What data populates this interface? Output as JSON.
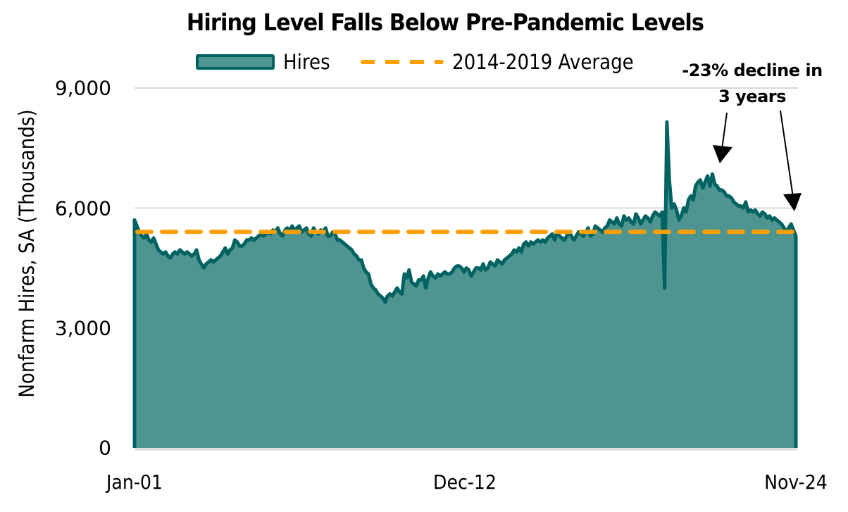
{
  "title": "Hiring Level Falls Below Pre-Pandemic Levels",
  "legend": {
    "hires": "Hires",
    "average": "2014-2019 Average"
  },
  "annotation": {
    "line1": "-23% decline in",
    "line2": "3 years"
  },
  "colors": {
    "hires_fill": "#4e9490",
    "hires_line": "#006361",
    "average_line": "#ffa000",
    "gridline": "#d9d9d9"
  },
  "axes": {
    "ylabel": "Nonfarm Hires, SA (Thousands)",
    "yticks": [
      "9,000",
      "6,000",
      "3,000",
      "0"
    ],
    "xticks": [
      "Jan-01",
      "Dec-12",
      "Nov-24"
    ]
  },
  "chart_data": {
    "type": "area",
    "title": "Hiring Level Falls Below Pre-Pandemic Levels",
    "xlabel": "",
    "ylabel": "Nonfarm Hires, SA (Thousands)",
    "ylim": [
      0,
      9000
    ],
    "yticks": [
      0,
      3000,
      6000,
      9000
    ],
    "xticks": [
      "Jan-01",
      "Dec-12",
      "Nov-24"
    ],
    "x_range": [
      "Jan-01",
      "Nov-24"
    ],
    "grid": true,
    "legend_position": "top",
    "annotations": [
      "-23% decline in 3 years"
    ],
    "series": [
      {
        "name": "Hires",
        "type": "area",
        "frequency": "monthly",
        "start": "Jan-01",
        "values": [
          5700,
          5550,
          5400,
          5300,
          5250,
          5350,
          5200,
          5150,
          5250,
          5100,
          4950,
          4900,
          4850,
          4900,
          4800,
          4750,
          4850,
          4900,
          4850,
          4950,
          4900,
          4850,
          4900,
          4850,
          4800,
          4850,
          4950,
          4700,
          4600,
          4500,
          4600,
          4650,
          4700,
          4650,
          4700,
          4750,
          4800,
          4900,
          5000,
          4850,
          4950,
          5000,
          5200,
          5150,
          5050,
          5050,
          5100,
          5200,
          5200,
          5250,
          5200,
          5250,
          5300,
          5350,
          5300,
          5350,
          5400,
          5350,
          5450,
          5400,
          5500,
          5350,
          5300,
          5450,
          5500,
          5400,
          5550,
          5450,
          5500,
          5550,
          5400,
          5450,
          5500,
          5350,
          5300,
          5500,
          5400,
          5350,
          5450,
          5400,
          5500,
          5300,
          5300,
          5400,
          5350,
          5200,
          5200,
          5150,
          5100,
          5050,
          5000,
          4950,
          4850,
          4800,
          4700,
          4700,
          4500,
          4400,
          4350,
          4100,
          4000,
          3950,
          3850,
          3800,
          3750,
          3650,
          3800,
          3850,
          3800,
          3900,
          4000,
          3900,
          3850,
          4350,
          4250,
          4450,
          4150,
          4100,
          4050,
          4200,
          4200,
          4300,
          4000,
          4250,
          4400,
          4300,
          4250,
          4350,
          4300,
          4350,
          4400,
          4350,
          4350,
          4400,
          4500,
          4550,
          4550,
          4500,
          4400,
          4500,
          4450,
          4300,
          4400,
          4500,
          4500,
          4450,
          4600,
          4450,
          4500,
          4650,
          4600,
          4550,
          4700,
          4650,
          4600,
          4700,
          4750,
          4800,
          4850,
          4950,
          4900,
          5000,
          4900,
          5100,
          5150,
          5050,
          5150,
          5100,
          5150,
          5200,
          5150,
          5200,
          5150,
          5250,
          5300,
          5350,
          5200,
          5400,
          5300,
          5250,
          5200,
          5300,
          5400,
          5300,
          5200,
          5300,
          5400,
          5350,
          5300,
          5400,
          5500,
          5300,
          5350,
          5550,
          5500,
          5450,
          5400,
          5500,
          5550,
          5700,
          5650,
          5600,
          5750,
          5600,
          5550,
          5800,
          5700,
          5750,
          5650,
          5600,
          5850,
          5750,
          5600,
          5700,
          5800,
          5750,
          5650,
          5800,
          5900,
          5850,
          5800,
          5900,
          4000,
          8150,
          6700,
          6000,
          6100,
          5950,
          5700,
          5800,
          6000,
          5900,
          6200,
          6300,
          6200,
          6550,
          6650,
          6700,
          6500,
          6650,
          6800,
          6550,
          6850,
          6600,
          6550,
          6450,
          6450,
          6400,
          6300,
          6300,
          6250,
          6150,
          6100,
          6050,
          6050,
          6000,
          6150,
          5900,
          5950,
          5900,
          5950,
          5850,
          5800,
          5900,
          5850,
          5750,
          5800,
          5700,
          5750,
          5700,
          5650,
          5600,
          5500,
          5400,
          5500,
          5600,
          5450,
          5300
        ]
      },
      {
        "name": "2014-2019 Average",
        "type": "line",
        "style": "dashed",
        "value": 5405
      }
    ]
  }
}
